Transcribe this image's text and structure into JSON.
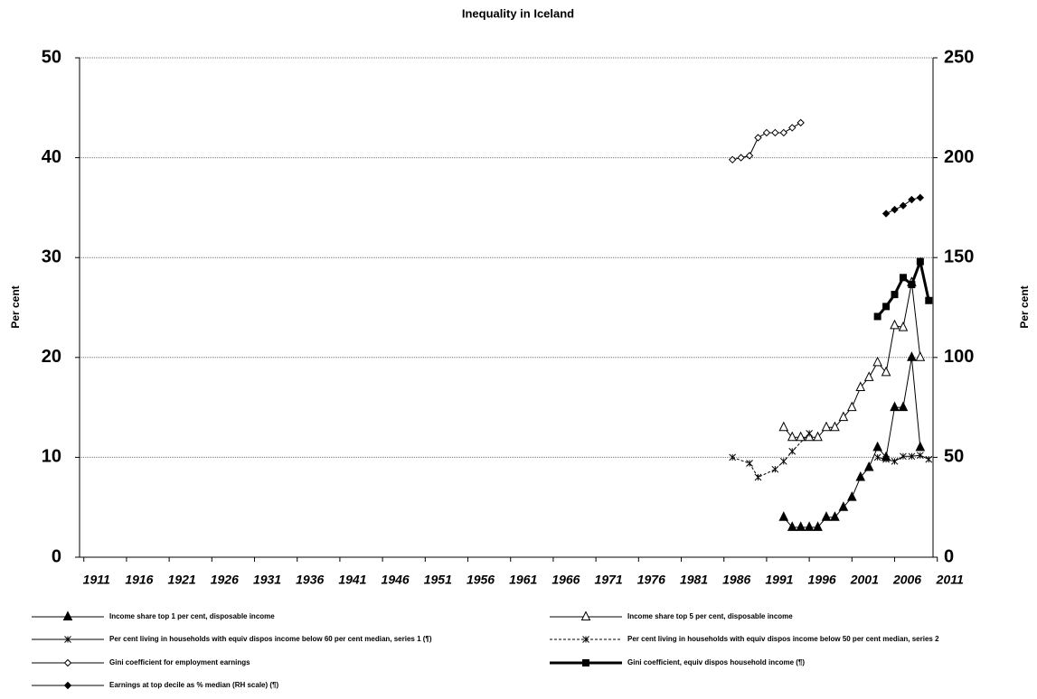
{
  "chart_data": {
    "type": "line",
    "title": "Inequality in Iceland",
    "ylabel": "Per cent",
    "y2label": "Per cent",
    "xlim": [
      1910.5,
      2010.5
    ],
    "xticks": [
      1911,
      1916,
      1921,
      1926,
      1931,
      1936,
      1941,
      1946,
      1951,
      1956,
      1961,
      1966,
      1971,
      1976,
      1981,
      1986,
      1991,
      1996,
      2001,
      2006,
      2011
    ],
    "ylim": [
      0,
      50
    ],
    "yticks": [
      0,
      10,
      20,
      30,
      40,
      50
    ],
    "y2lim": [
      0,
      250
    ],
    "y2ticks": [
      0,
      50,
      100,
      150,
      200,
      250
    ],
    "grid": true,
    "series": [
      {
        "name": "Income share top 1 per cent, disposable income",
        "color": "#000000",
        "marker": "triangle-filled",
        "dash": "solid",
        "width": 1,
        "x": [
          1993,
          1994,
          1995,
          1996,
          1997,
          1998,
          1999,
          2000,
          2001,
          2002,
          2003,
          2004,
          2005,
          2006,
          2007,
          2008,
          2009
        ],
        "values": [
          4.0,
          3.0,
          3.0,
          3.0,
          3.0,
          4.0,
          4.0,
          5.0,
          6.0,
          8.0,
          9.0,
          11.0,
          10.0,
          15.0,
          15.0,
          20.0,
          11.0
        ]
      },
      {
        "name": "Income share top 5 per cent, disposable income",
        "color": "#000000",
        "marker": "triangle-open",
        "dash": "solid",
        "width": 1,
        "x": [
          1993,
          1994,
          1995,
          1996,
          1997,
          1998,
          1999,
          2000,
          2001,
          2002,
          2003,
          2004,
          2005,
          2006,
          2007,
          2008,
          2009
        ],
        "values": [
          13.0,
          12.0,
          12.0,
          12.0,
          12.0,
          13.0,
          13.0,
          14.0,
          15.0,
          17.0,
          18.0,
          19.5,
          18.5,
          23.2,
          23.0,
          27.5,
          20.0
        ]
      },
      {
        "name": "Per cent living in households with equiv dispos income below 60 per cent median, series 1 (¶)",
        "color": "#000000",
        "marker": "asterisk",
        "dash": "solid",
        "width": 1,
        "x": [
          2004,
          2005,
          2006,
          2007,
          2008,
          2009,
          2010
        ],
        "values": [
          10.0,
          9.8,
          9.6,
          10.1,
          10.1,
          10.2,
          9.8
        ]
      },
      {
        "name": "Per cent living in households with equiv dispos income below 50 per cent median, series 2",
        "color": "#000000",
        "marker": "asterisk",
        "dash": "dashed",
        "width": 1,
        "x": [
          1987,
          1989,
          1990,
          1992,
          1993,
          1994,
          1996
        ],
        "values": [
          10.0,
          9.4,
          8.0,
          8.8,
          9.6,
          10.6,
          12.4
        ]
      },
      {
        "name": "Gini coefficient for employment earnings",
        "color": "#000000",
        "marker": "diamond-open",
        "dash": "solid",
        "width": 1,
        "x": [
          1987,
          1988,
          1989,
          1990,
          1991,
          1992,
          1993,
          1994,
          1995
        ],
        "values": [
          39.8,
          40.0,
          40.2,
          42.0,
          42.5,
          42.5,
          42.5,
          43.0,
          43.5
        ]
      },
      {
        "name": "Gini coefficient, equiv dispos household income (¶)",
        "color": "#000000",
        "marker": "square-filled",
        "dash": "solid",
        "width": 3,
        "x": [
          2004,
          2005,
          2006,
          2007,
          2008,
          2009,
          2010
        ],
        "values": [
          24.1,
          25.1,
          26.3,
          28.0,
          27.3,
          29.6,
          25.7
        ]
      },
      {
        "name": "Earnings at top decile as % median (RH scale) (¶)",
        "color": "#000000",
        "marker": "diamond-filled",
        "dash": "solid",
        "width": 1,
        "axis": "y2",
        "x": [
          2005,
          2006,
          2007,
          2008,
          2009
        ],
        "values": [
          172,
          174,
          176,
          179,
          180
        ]
      }
    ]
  }
}
